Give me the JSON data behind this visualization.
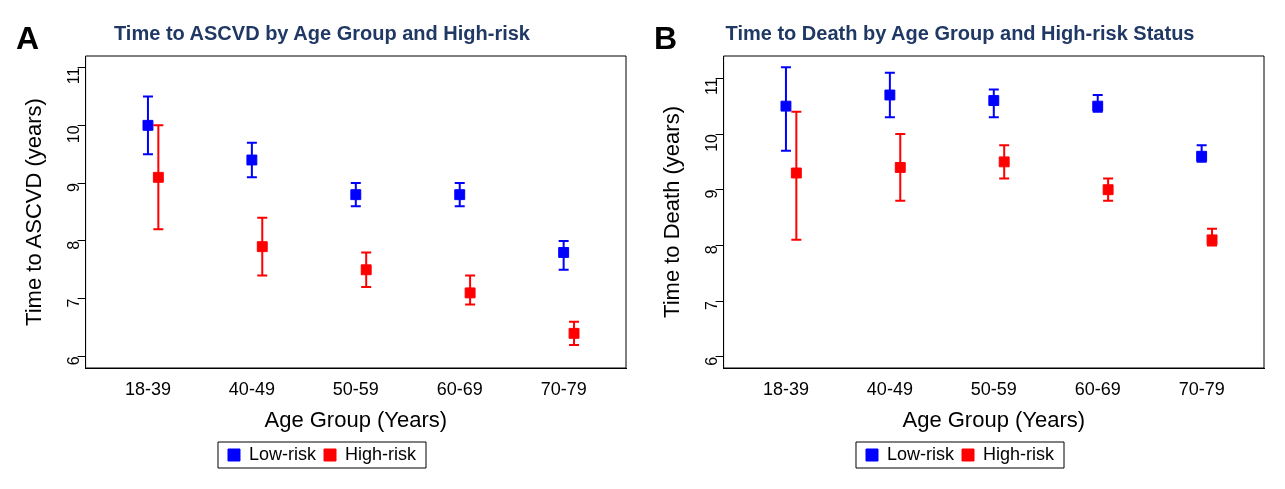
{
  "chart_data": [
    {
      "type": "scatter",
      "title": "Time to ASCVD by Age Group and High-risk",
      "xlabel": "Age Group (Years)",
      "ylabel": "Time to ASCVD (years)",
      "annotations": [
        "A"
      ],
      "categories": [
        "18-39",
        "40-49",
        "50-59",
        "60-69",
        "70-79"
      ],
      "ylim": [
        5.8,
        11.2
      ],
      "yticks": [
        6,
        7,
        8,
        9,
        10,
        11
      ],
      "grid": false,
      "legend": "bottom",
      "marker": "square",
      "series": [
        {
          "name": "Low-risk",
          "color": "#0000ff",
          "values": [
            10,
            9.4,
            8.8,
            8.8,
            7.8
          ],
          "errors": [
            [
              9.5,
              10.5
            ],
            [
              9.1,
              9.7
            ],
            [
              8.6,
              9.0
            ],
            [
              8.6,
              9.0
            ],
            [
              7.5,
              8.0
            ]
          ]
        },
        {
          "name": "High-risk",
          "color": "#ff0000",
          "values": [
            9.1,
            7.9,
            7.5,
            7.1,
            6.4
          ],
          "errors": [
            [
              8.2,
              10.0
            ],
            [
              7.4,
              8.4
            ],
            [
              7.2,
              7.8
            ],
            [
              6.9,
              7.4
            ],
            [
              6.2,
              6.6
            ]
          ]
        }
      ]
    },
    {
      "type": "scatter",
      "title": "Time to Death by Age Group and High-risk Status",
      "xlabel": "Age Group (Years)",
      "ylabel": "Time to Death (years)",
      "annotations": [
        "B"
      ],
      "categories": [
        "18-39",
        "40-49",
        "50-59",
        "60-69",
        "70-79"
      ],
      "ylim": [
        5.8,
        11.4
      ],
      "yticks": [
        6,
        7,
        8,
        9,
        10,
        11
      ],
      "grid": false,
      "legend": "bottom",
      "marker": "square",
      "series": [
        {
          "name": "Low-risk",
          "color": "#0000ff",
          "values": [
            10.5,
            10.7,
            10.6,
            10.5,
            9.6
          ],
          "errors": [
            [
              9.7,
              11.2
            ],
            [
              10.3,
              11.1
            ],
            [
              10.3,
              10.8
            ],
            [
              10.4,
              10.7
            ],
            [
              9.5,
              9.8
            ]
          ]
        },
        {
          "name": "High-risk",
          "color": "#ff0000",
          "values": [
            9.3,
            9.4,
            9.5,
            9.0,
            8.1
          ],
          "errors": [
            [
              8.1,
              10.4
            ],
            [
              8.8,
              10.0
            ],
            [
              9.2,
              9.8
            ],
            [
              8.8,
              9.2
            ],
            [
              8.0,
              8.3
            ]
          ]
        }
      ]
    }
  ]
}
